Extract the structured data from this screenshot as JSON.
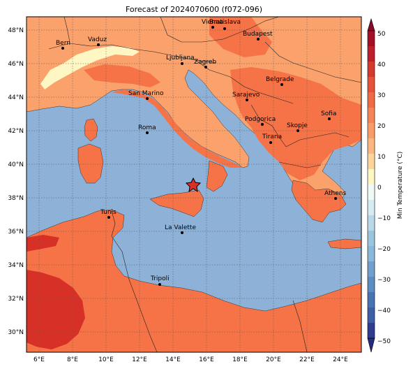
{
  "title": "Forecast of 2024070600 (f072-096)",
  "colorbar": {
    "label": "Min Temperature (°C)",
    "ticks": [
      "50",
      "40",
      "30",
      "20",
      "10",
      "0",
      "−10",
      "−20",
      "−30",
      "−40",
      "−50"
    ],
    "colors": [
      "#8a0a26",
      "#bf1e2d",
      "#db3a2e",
      "#f06a43",
      "#fa9c66",
      "#fdd49a",
      "#fef6c3",
      "#e6f3f8",
      "#b9d9e9",
      "#8bb7d8",
      "#5b8dc1",
      "#3e5fa6",
      "#2f3c90",
      "#262a80"
    ]
  },
  "axes": {
    "lon_labels": [
      "6°E",
      "8°E",
      "10°E",
      "12°E",
      "14°E",
      "16°E",
      "18°E",
      "20°E",
      "22°E",
      "24°E"
    ],
    "lat_labels": [
      "48°N",
      "46°N",
      "44°N",
      "42°N",
      "40°N",
      "38°N",
      "36°N",
      "34°N",
      "32°N",
      "30°N"
    ]
  },
  "cities": [
    {
      "name": "Bern"
    },
    {
      "name": "Vaduz"
    },
    {
      "name": "Vienna"
    },
    {
      "name": "Bratislava"
    },
    {
      "name": "Budapest"
    },
    {
      "name": "Ljubljana"
    },
    {
      "name": "Zagreb"
    },
    {
      "name": "Belgrade"
    },
    {
      "name": "San Marino"
    },
    {
      "name": "Sarajevo"
    },
    {
      "name": "Podgorica"
    },
    {
      "name": "Skopje"
    },
    {
      "name": "Sofia"
    },
    {
      "name": "Roma"
    },
    {
      "name": "Tirana"
    },
    {
      "name": "Athens"
    },
    {
      "name": "Tunis"
    },
    {
      "name": "La Valette"
    },
    {
      "name": "Tripoli"
    }
  ],
  "colors": {
    "sea": "#8eb2d7",
    "land_warm": "#f57346",
    "land_warmer": "#fba16c",
    "land_hot": "#d73027",
    "land_cool": "#fef6c3"
  }
}
